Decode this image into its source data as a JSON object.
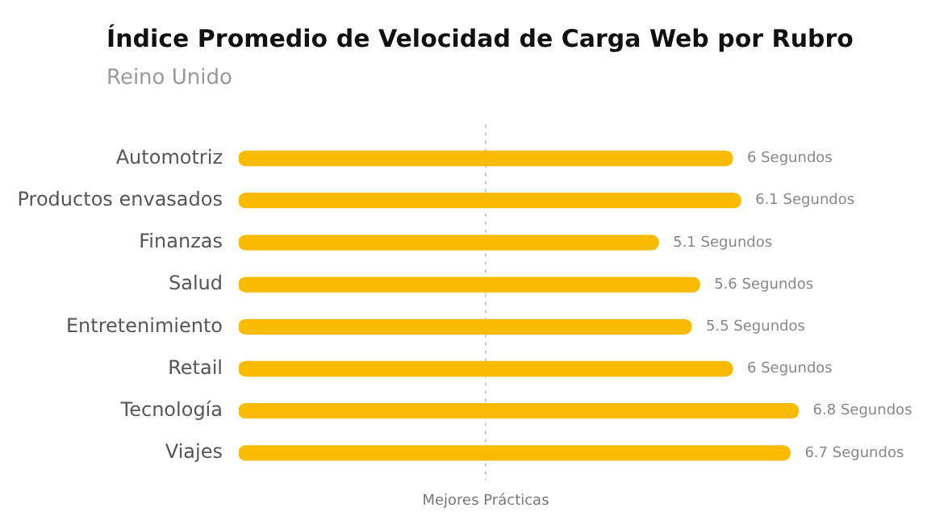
{
  "chart_data": {
    "type": "bar",
    "orientation": "horizontal",
    "title": "Índice Promedio de Velocidad de Carga Web por Rubro",
    "subtitle": "Reino Unido",
    "categories": [
      "Automotriz",
      "Productos envasados",
      "Finanzas",
      "Salud",
      "Entretenimiento",
      "Retail",
      "Tecnología",
      "Viajes"
    ],
    "values": [
      6,
      6.1,
      5.1,
      5.6,
      5.5,
      6,
      6.8,
      6.7
    ],
    "value_labels": [
      "6 Segundos",
      "6.1 Segundos",
      "5.1 Segundos",
      "5.6 Segundos",
      "5.5 Segundos",
      "6 Segundos",
      "6.8 Segundos",
      "6.7 Segundos"
    ],
    "color": "#f9bb00",
    "ref_lines": [
      {
        "axis": "x",
        "value": 3,
        "label": "Mejores Prácticas",
        "color": "#c8c8c8",
        "line_style": "dotted"
      }
    ]
  }
}
